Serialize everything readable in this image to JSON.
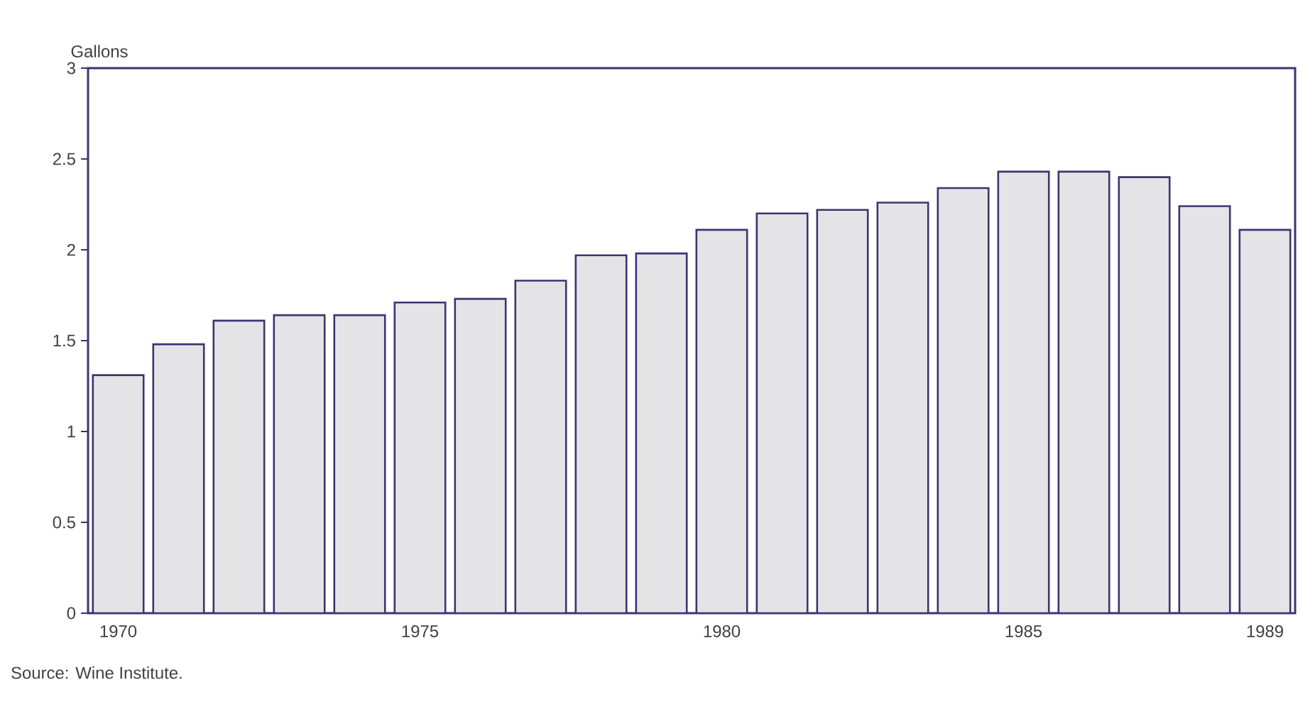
{
  "chart_data": {
    "type": "bar",
    "ylabel": "Gallons",
    "categories": [
      "1970",
      null,
      null,
      null,
      null,
      "1975",
      null,
      null,
      null,
      null,
      "1980",
      null,
      null,
      null,
      null,
      "1985",
      null,
      null,
      null,
      "1989"
    ],
    "values": [
      1.31,
      1.48,
      1.61,
      1.64,
      1.64,
      1.71,
      1.73,
      1.83,
      1.97,
      1.98,
      2.11,
      2.2,
      2.22,
      2.26,
      2.34,
      2.43,
      2.43,
      2.4,
      2.24,
      2.11
    ],
    "color": "#e4e4e6",
    "ylim": [
      0,
      3
    ],
    "yticks": [
      0,
      0.5,
      1,
      1.5,
      2,
      2.5,
      3
    ],
    "grid": false,
    "annotations": [
      "Source:  Wine Institute."
    ]
  }
}
